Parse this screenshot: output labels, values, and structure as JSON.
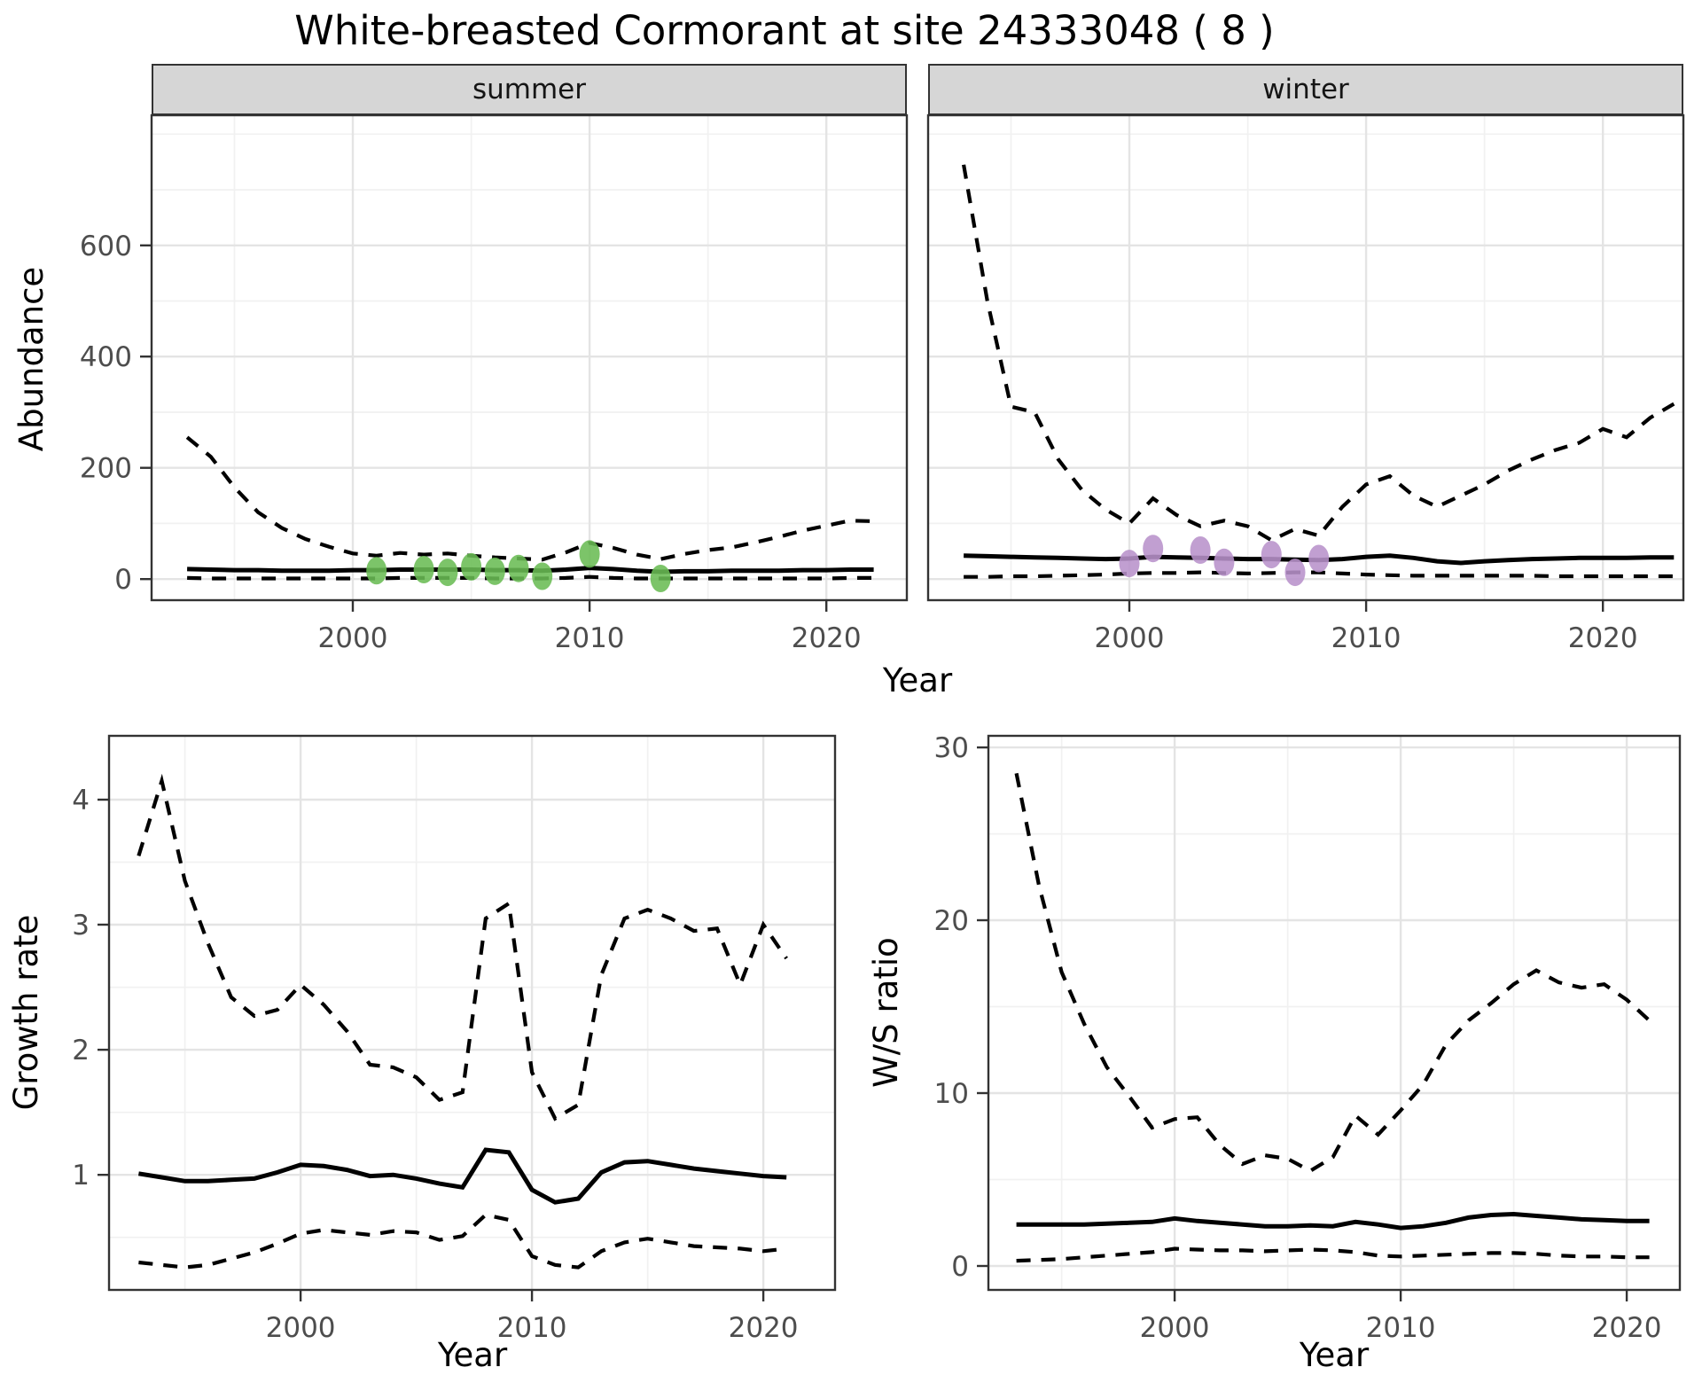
{
  "title": "White-breasted Cormorant at site 24333048 ( 8 )",
  "axes": {
    "abundance_label": "Abundance",
    "year_label": "Year",
    "growth_label": "Growth rate",
    "ws_label": "W/S ratio"
  },
  "facets": [
    {
      "label": "summer"
    },
    {
      "label": "winter"
    }
  ],
  "colors": {
    "summer_points": "#6abc54",
    "winter_points": "#b892cb",
    "line": "#000000",
    "grid_major": "#e4e4e4",
    "grid_minor": "#f1f1f1",
    "panel_border": "#333333",
    "strip_fill": "#d6d6d6",
    "tick_text": "#4d4d4d"
  },
  "chart_data": [
    {
      "id": "abundance-summer",
      "type": "line",
      "facet": "summer",
      "xlabel": "Year",
      "ylabel": "Abundance",
      "xlim": [
        1991.5,
        2023.4
      ],
      "ylim": [
        -38,
        834
      ],
      "x_ticks": [
        2000,
        2010,
        2020
      ],
      "x_minor_ticks": [
        1995,
        2005,
        2015
      ],
      "y_ticks": [
        0,
        200,
        400,
        600
      ],
      "y_minor_ticks": [
        100,
        300,
        500,
        700,
        800
      ],
      "x": [
        1993,
        1994,
        1995,
        1996,
        1997,
        1998,
        1999,
        2000,
        2001,
        2002,
        2003,
        2004,
        2005,
        2006,
        2007,
        2008,
        2009,
        2010,
        2011,
        2012,
        2013,
        2014,
        2015,
        2016,
        2017,
        2018,
        2019,
        2020,
        2021,
        2022
      ],
      "series": [
        {
          "name": "upper_ci",
          "style": "dashed",
          "values": [
            255,
            220,
            165,
            120,
            92,
            72,
            58,
            46,
            42,
            47,
            44,
            46,
            42,
            39,
            37,
            35,
            48,
            65,
            56,
            44,
            36,
            45,
            52,
            57,
            66,
            76,
            87,
            96,
            105,
            104
          ]
        },
        {
          "name": "median",
          "style": "solid",
          "values": [
            18,
            17,
            16,
            16,
            15,
            15,
            15,
            16,
            16,
            17,
            17,
            17,
            17,
            16,
            16,
            15,
            17,
            20,
            18,
            15,
            13,
            14,
            14,
            15,
            15,
            15,
            16,
            16,
            17,
            17
          ]
        },
        {
          "name": "lower_ci",
          "style": "dashed",
          "values": [
            2,
            1,
            1,
            1,
            1,
            1,
            1,
            1,
            1,
            2,
            2,
            2,
            2,
            1,
            1,
            1,
            2,
            4,
            2,
            1,
            1,
            1,
            1,
            1,
            1,
            1,
            1,
            1,
            2,
            2
          ]
        }
      ],
      "points": {
        "name": "observed-counts",
        "color_key": "summer_points",
        "x": [
          2001,
          2003,
          2004,
          2005,
          2006,
          2007,
          2008,
          2010,
          2013
        ],
        "y": [
          15,
          17,
          12,
          22,
          14,
          19,
          5,
          45,
          1
        ]
      }
    },
    {
      "id": "abundance-winter",
      "type": "line",
      "facet": "winter",
      "xlabel": "Year",
      "ylabel": "Abundance",
      "xlim": [
        1991.5,
        2023.4
      ],
      "ylim": [
        -38,
        834
      ],
      "x_ticks": [
        2000,
        2010,
        2020
      ],
      "x_minor_ticks": [
        1995,
        2005,
        2015
      ],
      "y_ticks": [
        0,
        200,
        400,
        600
      ],
      "y_minor_ticks": [
        100,
        300,
        500,
        700,
        800
      ],
      "x": [
        1993,
        1994,
        1995,
        1996,
        1997,
        1998,
        1999,
        2000,
        2001,
        2002,
        2003,
        2004,
        2005,
        2006,
        2007,
        2008,
        2009,
        2010,
        2011,
        2012,
        2013,
        2014,
        2015,
        2016,
        2017,
        2018,
        2019,
        2020,
        2021,
        2022,
        2023
      ],
      "series": [
        {
          "name": "upper_ci",
          "style": "dashed",
          "values": [
            745,
            500,
            310,
            300,
            215,
            160,
            125,
            100,
            145,
            115,
            95,
            105,
            95,
            70,
            90,
            78,
            130,
            170,
            185,
            150,
            130,
            150,
            170,
            195,
            215,
            232,
            245,
            270,
            255,
            290,
            315
          ]
        },
        {
          "name": "median",
          "style": "solid",
          "values": [
            42,
            41,
            40,
            39,
            38,
            37,
            36,
            37,
            40,
            39,
            38,
            37,
            36,
            36,
            35,
            34,
            36,
            40,
            42,
            38,
            32,
            29,
            32,
            34,
            36,
            37,
            38,
            38,
            38,
            39,
            39
          ]
        },
        {
          "name": "lower_ci",
          "style": "dashed",
          "values": [
            4,
            4,
            5,
            5,
            6,
            7,
            8,
            10,
            11,
            11,
            12,
            11,
            10,
            11,
            12,
            12,
            10,
            8,
            7,
            6,
            6,
            6,
            6,
            6,
            6,
            5,
            5,
            5,
            5,
            5,
            5
          ]
        }
      ],
      "points": {
        "name": "observed-counts",
        "color_key": "winter_points",
        "x": [
          2000,
          2001,
          2003,
          2004,
          2006,
          2007,
          2008
        ],
        "y": [
          28,
          55,
          52,
          30,
          44,
          12,
          37
        ]
      }
    },
    {
      "id": "growth-rate",
      "type": "line",
      "xlabel": "Year",
      "ylabel": "Growth rate",
      "xlim": [
        1991.72,
        2023.1
      ],
      "ylim": [
        0.08,
        4.51
      ],
      "x_ticks": [
        2000,
        2010,
        2020
      ],
      "x_minor_ticks": [
        1995,
        2005,
        2015
      ],
      "y_ticks": [
        1,
        2,
        3,
        4
      ],
      "y_minor_ticks": [
        0.5,
        1.5,
        2.5,
        3.5
      ],
      "x": [
        1993,
        1994,
        1995,
        1996,
        1997,
        1998,
        1999,
        2000,
        2001,
        2002,
        2003,
        2004,
        2005,
        2006,
        2007,
        2008,
        2009,
        2010,
        2011,
        2012,
        2013,
        2014,
        2015,
        2016,
        2017,
        2018,
        2019,
        2020,
        2021
      ],
      "series": [
        {
          "name": "upper_ci",
          "style": "dashed",
          "values": [
            3.55,
            4.15,
            3.35,
            2.85,
            2.42,
            2.27,
            2.32,
            2.52,
            2.36,
            2.15,
            1.88,
            1.86,
            1.78,
            1.6,
            1.66,
            3.05,
            3.17,
            1.82,
            1.45,
            1.56,
            2.6,
            3.05,
            3.12,
            3.05,
            2.95,
            2.97,
            2.52,
            3.0,
            2.73
          ]
        },
        {
          "name": "median",
          "style": "solid",
          "values": [
            1.01,
            0.98,
            0.95,
            0.95,
            0.96,
            0.97,
            1.02,
            1.08,
            1.07,
            1.04,
            0.99,
            1.0,
            0.97,
            0.93,
            0.9,
            1.2,
            1.18,
            0.88,
            0.78,
            0.81,
            1.02,
            1.1,
            1.11,
            1.08,
            1.05,
            1.03,
            1.01,
            0.99,
            0.98
          ]
        },
        {
          "name": "lower_ci",
          "style": "dashed",
          "values": [
            0.3,
            0.28,
            0.26,
            0.28,
            0.33,
            0.38,
            0.45,
            0.53,
            0.56,
            0.54,
            0.52,
            0.55,
            0.54,
            0.48,
            0.51,
            0.68,
            0.64,
            0.35,
            0.28,
            0.26,
            0.39,
            0.46,
            0.49,
            0.46,
            0.43,
            0.42,
            0.41,
            0.39,
            0.41
          ]
        }
      ]
    },
    {
      "id": "ws-ratio",
      "type": "line",
      "xlabel": "Year",
      "ylabel": "W/S ratio",
      "xlim": [
        1991.76,
        2022.35
      ],
      "ylim": [
        -1.385,
        30.67
      ],
      "x_ticks": [
        2000,
        2010,
        2020
      ],
      "x_minor_ticks": [
        1995,
        2005,
        2015
      ],
      "y_ticks": [
        0,
        10,
        20,
        30
      ],
      "y_minor_ticks": [
        5,
        15,
        25
      ],
      "x": [
        1993,
        1994,
        1995,
        1996,
        1997,
        1998,
        1999,
        2000,
        2001,
        2002,
        2003,
        2004,
        2005,
        2006,
        2007,
        2008,
        2009,
        2010,
        2011,
        2012,
        2013,
        2014,
        2015,
        2016,
        2017,
        2018,
        2019,
        2020,
        2021
      ],
      "series": [
        {
          "name": "upper_ci",
          "style": "dashed",
          "values": [
            28.5,
            22.0,
            17.0,
            14.0,
            11.5,
            9.8,
            8.0,
            8.5,
            8.6,
            7.0,
            5.9,
            6.4,
            6.2,
            5.5,
            6.3,
            8.7,
            7.6,
            9.0,
            10.5,
            12.8,
            14.2,
            15.2,
            16.3,
            17.1,
            16.4,
            16.1,
            16.3,
            15.4,
            14.2
          ]
        },
        {
          "name": "median",
          "style": "solid",
          "values": [
            2.4,
            2.4,
            2.4,
            2.4,
            2.45,
            2.5,
            2.55,
            2.75,
            2.6,
            2.5,
            2.4,
            2.3,
            2.3,
            2.35,
            2.3,
            2.55,
            2.4,
            2.2,
            2.3,
            2.5,
            2.8,
            2.95,
            3.0,
            2.9,
            2.8,
            2.7,
            2.65,
            2.6,
            2.6
          ]
        },
        {
          "name": "lower_ci",
          "style": "dashed",
          "values": [
            0.3,
            0.35,
            0.4,
            0.5,
            0.6,
            0.7,
            0.8,
            1.0,
            0.95,
            0.9,
            0.9,
            0.85,
            0.9,
            0.95,
            0.9,
            0.8,
            0.6,
            0.55,
            0.6,
            0.65,
            0.7,
            0.75,
            0.75,
            0.7,
            0.6,
            0.55,
            0.55,
            0.5,
            0.5
          ]
        }
      ]
    }
  ]
}
